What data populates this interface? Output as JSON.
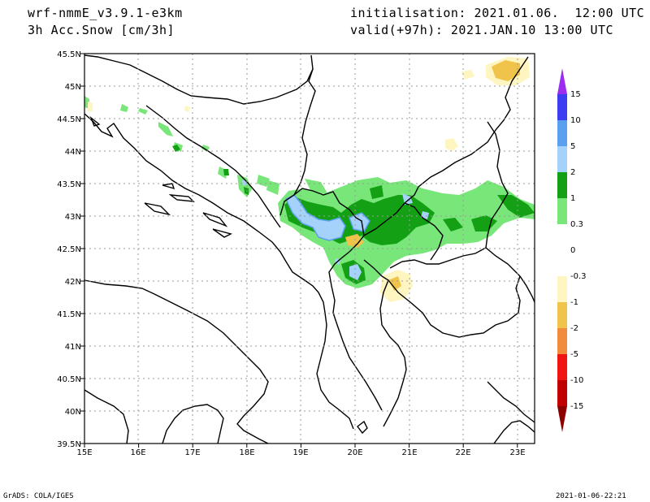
{
  "header": {
    "model": "wrf-nmmE_v3.9.1-e3km",
    "variable": "3h Acc.Snow [cm/3h]",
    "initialisation": "initialisation: 2021.01.06.  12:00 UTC",
    "valid": "valid(+97h): 2021.JAN.10 13:00 UTC"
  },
  "footer": {
    "credit": "GrADS: COLA/IGES",
    "timestamp": "2021-01-06-22:21"
  },
  "axes": {
    "lat_labels": [
      "45.5N",
      "45N",
      "44.5N",
      "44N",
      "43.5N",
      "43N",
      "42.5N",
      "42N",
      "41.5N",
      "41N",
      "40.5N",
      "40N",
      "39.5N"
    ],
    "lon_labels": [
      "15E",
      "16E",
      "17E",
      "18E",
      "19E",
      "20E",
      "21E",
      "22E",
      "23E"
    ]
  },
  "legend": {
    "labels": [
      "15",
      "10",
      "5",
      "2",
      "1",
      "0.3",
      "0",
      "-0.3",
      "-1",
      "-2",
      "-5",
      "-10",
      "-15"
    ],
    "colors": [
      "#9b2cf0",
      "#3c3cf0",
      "#5aa0ee",
      "#a5d2fa",
      "#14a014",
      "#78e678",
      "#ffffff",
      "#ffffff",
      "#fff5c0",
      "#f0c34b",
      "#f08c3c",
      "#f01414",
      "#c00000",
      "#8c0000"
    ]
  },
  "colors": {
    "light_green": "#78e678",
    "green": "#14a014",
    "light_blue": "#a5d2fa",
    "blue": "#5aa0ee",
    "pale_yellow": "#fff5c0",
    "yellow": "#f0c34b"
  }
}
